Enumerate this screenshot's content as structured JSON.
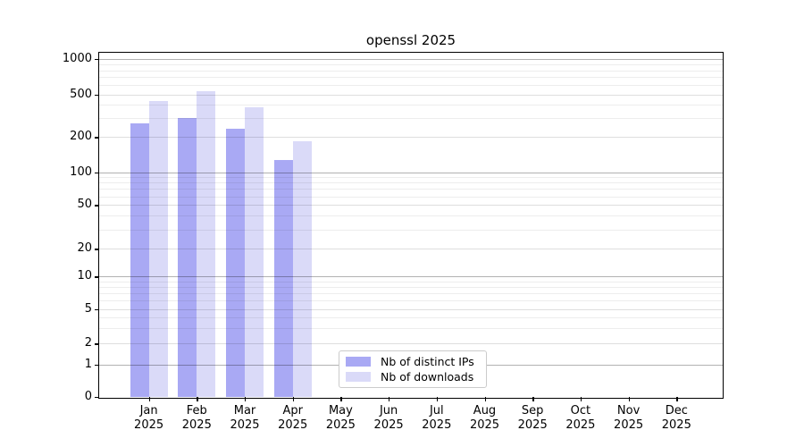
{
  "title": "openssl 2025",
  "chart_data": {
    "type": "bar",
    "title": "openssl 2025",
    "categories": [
      "Jan 2025",
      "Feb 2025",
      "Mar 2025",
      "Apr 2025",
      "May 2025",
      "Jun 2025",
      "Jul 2025",
      "Aug 2025",
      "Sep 2025",
      "Oct 2025",
      "Nov 2025",
      "Dec 2025"
    ],
    "series": [
      {
        "name": "Nb of distinct IPs",
        "color": "#a9a9f4",
        "values": [
          270,
          303,
          238,
          126,
          null,
          null,
          null,
          null,
          null,
          null,
          null,
          null
        ]
      },
      {
        "name": "Nb of downloads",
        "color": "#dadaf8",
        "values": [
          434,
          530,
          378,
          183,
          null,
          null,
          null,
          null,
          null,
          null,
          null,
          null
        ]
      }
    ],
    "yscale": "symlog",
    "yticks": [
      0,
      1,
      2,
      5,
      10,
      20,
      50,
      100,
      200,
      500,
      1000
    ],
    "ylim": [
      0,
      1150
    ],
    "xlabel": "",
    "ylabel": "",
    "grid": true,
    "legend_position": "lower center"
  }
}
